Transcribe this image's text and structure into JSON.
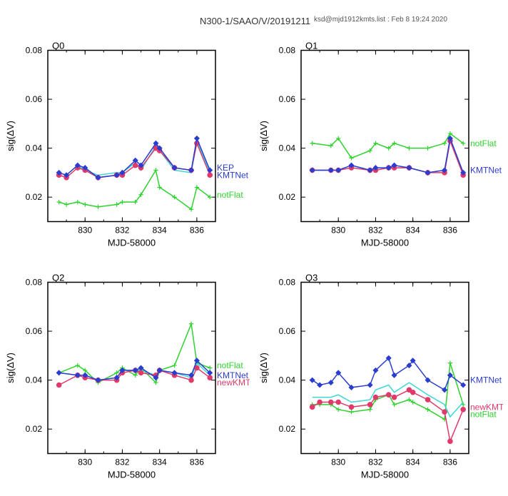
{
  "header": {
    "title": "N300-1/SAAO/V/20191211",
    "subtitle": "ksd@mjd1912kmts.list : Feb  8 19:24 2020"
  },
  "layout": {
    "panels": [
      "Q0",
      "Q1",
      "Q2",
      "Q3"
    ],
    "rows": 2,
    "cols": 2,
    "xlabel": "MJD-58000",
    "ylabel": "sig(ΔV)",
    "xlim": [
      828,
      837
    ],
    "xticks": [
      830,
      832,
      834,
      836
    ],
    "ylim": [
      0.01,
      0.08
    ],
    "yticks": [
      0.02,
      0.04,
      0.06,
      0.08
    ],
    "background_color": "#ffffff",
    "axis_color": "#000000",
    "title_fontsize": 13,
    "label_fontsize": 13,
    "tick_fontsize": 10
  },
  "series_style": {
    "KEP": {
      "color": "#2b3dcf",
      "label": "KEP",
      "marker": "diamond"
    },
    "KMTNet": {
      "color": "#2b3dcf",
      "label": "KMTNet",
      "marker": "diamond"
    },
    "newKMT": {
      "color": "#e03a6a",
      "label": "newKMT",
      "marker": "circle"
    },
    "notFlat": {
      "color": "#2fd22f",
      "label": "notFlat",
      "marker": "cross"
    },
    "cyan": {
      "color": "#3cd6d6",
      "label": "",
      "marker": "none"
    }
  },
  "panels_data": {
    "Q0": {
      "label": "Q0",
      "series": {
        "blue": {
          "style": "KMTNet",
          "x": [
            828.6,
            829.0,
            829.6,
            830.0,
            830.7,
            831.7,
            832.0,
            832.7,
            833.0,
            833.8,
            834.0,
            834.8,
            835.7,
            836.0,
            836.7
          ],
          "y": [
            0.03,
            0.029,
            0.033,
            0.032,
            0.028,
            0.029,
            0.03,
            0.035,
            0.033,
            0.042,
            0.04,
            0.032,
            0.031,
            0.044,
            0.031
          ]
        },
        "red": {
          "style": "newKMT",
          "x": [
            828.6,
            829.0,
            829.6,
            830.0,
            830.7,
            831.7,
            832.0,
            832.7,
            833.0,
            833.8,
            834.0,
            834.8,
            835.7,
            836.0,
            836.7
          ],
          "y": [
            0.029,
            0.028,
            0.032,
            0.031,
            0.028,
            0.029,
            0.029,
            0.033,
            0.032,
            0.04,
            0.039,
            0.032,
            0.031,
            0.042,
            0.029
          ]
        },
        "cyan": {
          "style": "cyan",
          "x": [
            828.6,
            829.0,
            829.6,
            830.0,
            830.7,
            831.7,
            832.0,
            832.7,
            833.0,
            833.8,
            834.0,
            834.8,
            835.7,
            836.0,
            836.7
          ],
          "y": [
            0.03,
            0.029,
            0.033,
            0.031,
            0.029,
            0.03,
            0.03,
            0.034,
            0.031,
            0.041,
            0.039,
            0.031,
            0.03,
            0.043,
            0.03
          ]
        },
        "green": {
          "style": "notFlat",
          "x": [
            828.6,
            829.0,
            829.6,
            830.0,
            830.7,
            831.7,
            832.0,
            832.7,
            833.0,
            833.8,
            834.0,
            834.8,
            835.7,
            836.0,
            836.7
          ],
          "y": [
            0.018,
            0.017,
            0.018,
            0.017,
            0.016,
            0.017,
            0.018,
            0.018,
            0.021,
            0.031,
            0.024,
            0.02,
            0.015,
            0.024,
            0.02
          ]
        }
      },
      "labels": [
        {
          "text": "KEP",
          "color": "#2b3dcf",
          "x": 837.2,
          "y": 0.032,
          "in_plot": false
        },
        {
          "text": "KMTNet",
          "color": "#2b3dcf",
          "x": 837.2,
          "y": 0.029,
          "in_plot": false
        },
        {
          "text": "notFlat",
          "color": "#2fd22f",
          "x": 837.2,
          "y": 0.021,
          "in_plot": false
        }
      ]
    },
    "Q1": {
      "label": "Q1",
      "series": {
        "blue": {
          "style": "KMTNet",
          "x": [
            828.6,
            829.6,
            830.0,
            830.7,
            831.7,
            832.0,
            832.7,
            833.0,
            833.8,
            834.8,
            835.7,
            836.0,
            836.7
          ],
          "y": [
            0.031,
            0.031,
            0.031,
            0.033,
            0.031,
            0.032,
            0.032,
            0.033,
            0.032,
            0.03,
            0.031,
            0.044,
            0.03
          ]
        },
        "red": {
          "style": "newKMT",
          "x": [
            828.6,
            829.6,
            830.0,
            830.7,
            831.7,
            832.0,
            832.7,
            833.0,
            833.8,
            834.8,
            835.7,
            836.0,
            836.7
          ],
          "y": [
            0.031,
            0.031,
            0.031,
            0.032,
            0.031,
            0.031,
            0.032,
            0.032,
            0.032,
            0.03,
            0.03,
            0.043,
            0.029
          ]
        },
        "cyan": {
          "style": "cyan",
          "x": [
            828.6,
            829.6,
            830.0,
            830.7,
            831.7,
            832.0,
            832.7,
            833.0,
            833.8,
            834.8,
            835.7,
            836.0,
            836.7
          ],
          "y": [
            0.031,
            0.031,
            0.031,
            0.033,
            0.031,
            0.032,
            0.032,
            0.032,
            0.032,
            0.03,
            0.031,
            0.044,
            0.03
          ]
        },
        "green": {
          "style": "notFlat",
          "x": [
            828.6,
            829.6,
            830.0,
            830.7,
            831.7,
            832.0,
            832.7,
            833.0,
            833.8,
            834.8,
            835.7,
            836.0,
            836.7
          ],
          "y": [
            0.042,
            0.041,
            0.044,
            0.036,
            0.039,
            0.042,
            0.04,
            0.042,
            0.04,
            0.04,
            0.042,
            0.046,
            0.042
          ]
        }
      },
      "labels": [
        {
          "text": "notFlat",
          "color": "#2fd22f",
          "x": 837.2,
          "y": 0.042,
          "in_plot": false
        },
        {
          "text": "KMTNet",
          "color": "#2b3dcf",
          "x": 837.2,
          "y": 0.031,
          "in_plot": false
        }
      ]
    },
    "Q2": {
      "label": "Q2",
      "series": {
        "blue": {
          "style": "KMTNet",
          "x": [
            828.6,
            829.6,
            830.0,
            830.7,
            831.7,
            832.0,
            832.7,
            833.0,
            833.8,
            834.0,
            834.8,
            835.7,
            836.0,
            836.7
          ],
          "y": [
            0.043,
            0.042,
            0.042,
            0.04,
            0.041,
            0.044,
            0.044,
            0.045,
            0.041,
            0.044,
            0.043,
            0.042,
            0.048,
            0.043
          ]
        },
        "red": {
          "style": "newKMT",
          "x": [
            828.6,
            829.6,
            830.0,
            830.7,
            831.7,
            832.0,
            832.7,
            833.0,
            833.8,
            834.0,
            834.8,
            835.7,
            836.0,
            836.7
          ],
          "y": [
            0.038,
            0.042,
            0.041,
            0.04,
            0.04,
            0.043,
            0.044,
            0.043,
            0.042,
            0.044,
            0.042,
            0.04,
            0.045,
            0.041
          ]
        },
        "cyan": {
          "style": "cyan",
          "x": [
            828.6,
            829.6,
            830.0,
            830.7,
            831.7,
            832.0,
            832.7,
            833.0,
            833.8,
            834.0,
            834.8,
            835.7,
            836.0,
            836.7
          ],
          "y": [
            0.043,
            0.042,
            0.042,
            0.04,
            0.041,
            0.044,
            0.044,
            0.044,
            0.042,
            0.044,
            0.043,
            0.041,
            0.047,
            0.042
          ]
        },
        "green": {
          "style": "notFlat",
          "x": [
            828.6,
            829.6,
            830.0,
            830.7,
            831.7,
            832.0,
            832.7,
            833.0,
            833.8,
            834.0,
            834.8,
            835.7,
            836.0,
            836.7
          ],
          "y": [
            0.043,
            0.046,
            0.044,
            0.039,
            0.043,
            0.045,
            0.042,
            0.045,
            0.039,
            0.044,
            0.046,
            0.063,
            0.047,
            0.045
          ]
        }
      },
      "labels": [
        {
          "text": "notFlat",
          "color": "#2fd22f",
          "x": 837.2,
          "y": 0.046,
          "in_plot": false
        },
        {
          "text": "KMTNet",
          "color": "#2b3dcf",
          "x": 837.2,
          "y": 0.042,
          "in_plot": false
        },
        {
          "text": "newKMT",
          "color": "#e03a6a",
          "x": 837.2,
          "y": 0.039,
          "in_plot": false
        }
      ]
    },
    "Q3": {
      "label": "Q3",
      "series": {
        "blue": {
          "style": "KMTNet",
          "x": [
            828.6,
            829.0,
            829.6,
            830.0,
            830.7,
            831.7,
            832.0,
            832.7,
            833.0,
            833.8,
            834.0,
            834.8,
            835.7,
            836.0,
            836.7
          ],
          "y": [
            0.04,
            0.038,
            0.039,
            0.043,
            0.037,
            0.038,
            0.044,
            0.049,
            0.042,
            0.046,
            0.048,
            0.04,
            0.036,
            0.042,
            0.038
          ]
        },
        "red": {
          "style": "newKMT",
          "x": [
            828.6,
            829.0,
            829.6,
            830.0,
            830.7,
            831.7,
            832.0,
            832.7,
            833.0,
            833.8,
            834.0,
            834.8,
            835.7,
            836.0,
            836.7
          ],
          "y": [
            0.029,
            0.031,
            0.031,
            0.031,
            0.029,
            0.03,
            0.033,
            0.034,
            0.033,
            0.036,
            0.035,
            0.032,
            0.027,
            0.015,
            0.028
          ]
        },
        "cyan": {
          "style": "cyan",
          "x": [
            828.6,
            829.0,
            829.6,
            830.0,
            830.7,
            831.7,
            832.0,
            832.7,
            833.0,
            833.8,
            834.0,
            834.8,
            835.7,
            836.0,
            836.7
          ],
          "y": [
            0.033,
            0.033,
            0.033,
            0.034,
            0.031,
            0.032,
            0.036,
            0.038,
            0.035,
            0.039,
            0.038,
            0.034,
            0.03,
            0.025,
            0.031
          ]
        },
        "green": {
          "style": "notFlat",
          "x": [
            828.6,
            829.0,
            829.6,
            830.0,
            830.7,
            831.7,
            832.0,
            832.7,
            833.0,
            833.8,
            834.0,
            834.8,
            835.7,
            836.0,
            836.7
          ],
          "y": [
            0.03,
            0.03,
            0.03,
            0.028,
            0.027,
            0.028,
            0.032,
            0.034,
            0.03,
            0.032,
            0.031,
            0.028,
            0.024,
            0.047,
            0.03
          ]
        }
      },
      "labels": [
        {
          "text": "KMTNet",
          "color": "#2b3dcf",
          "x": 837.2,
          "y": 0.04,
          "in_plot": false
        },
        {
          "text": "newKMT",
          "color": "#e03a6a",
          "x": 837.2,
          "y": 0.029,
          "in_plot": false
        },
        {
          "text": "notFlat",
          "color": "#2fd22f",
          "x": 837.2,
          "y": 0.026,
          "in_plot": false
        }
      ]
    }
  }
}
